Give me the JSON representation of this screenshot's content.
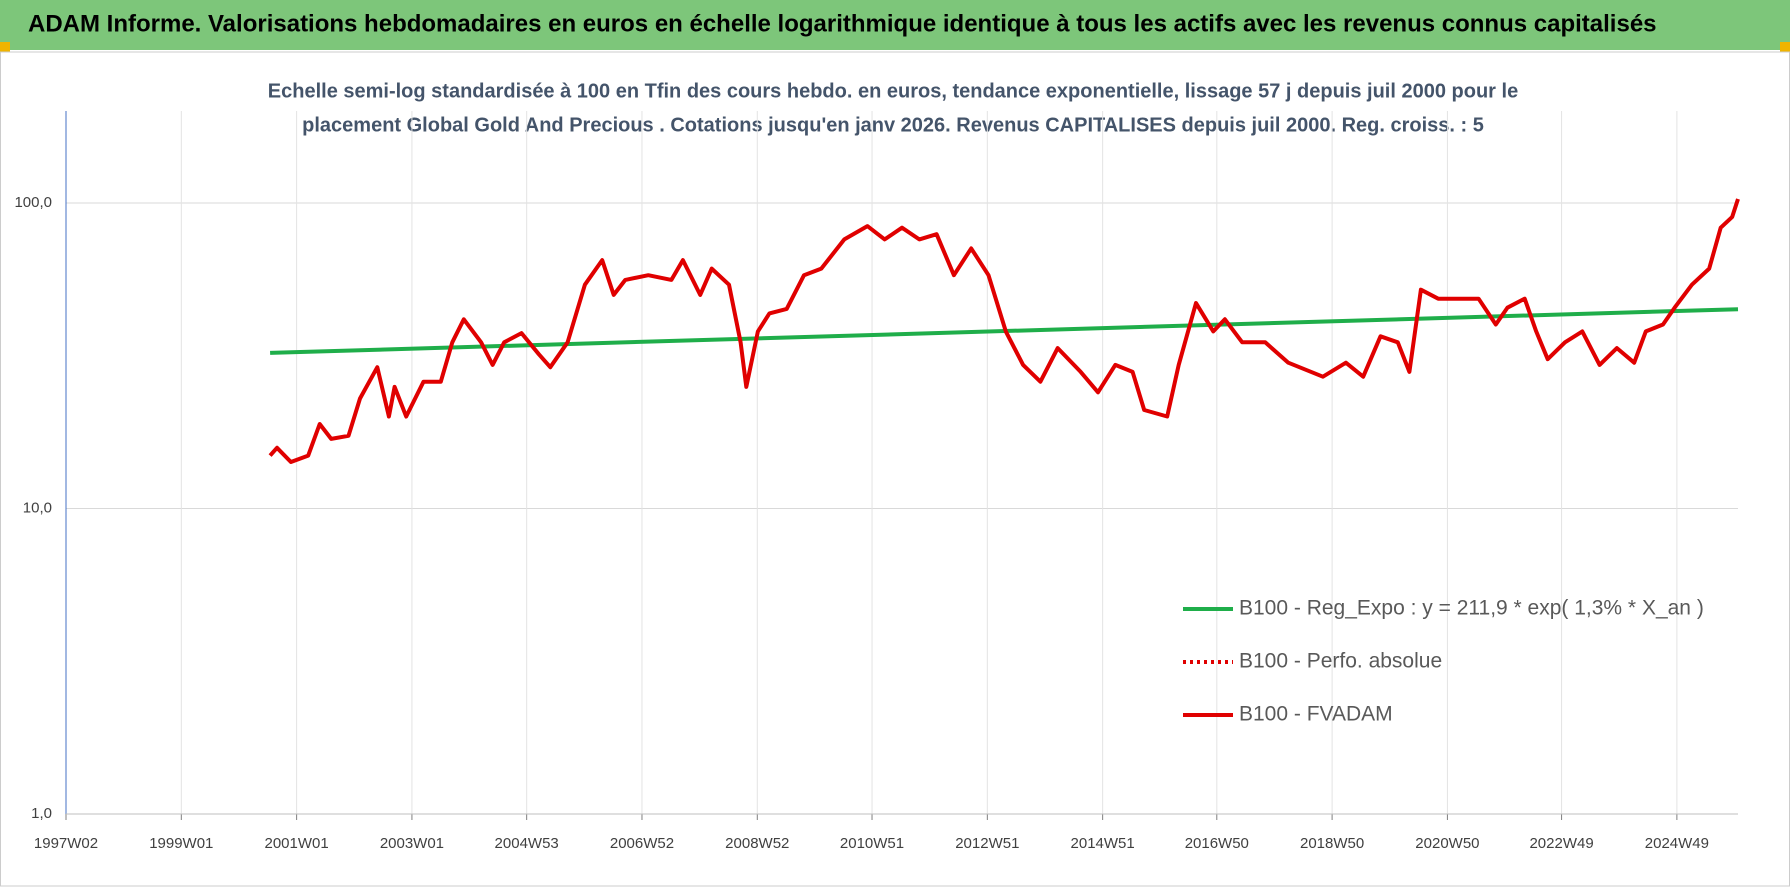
{
  "chart_data": {
    "type": "line",
    "banner": "ADAM Informe. Valorisations hebdomadaires en euros en échelle logarithmique identique à tous les actifs avec les revenus connus capitalisés",
    "title": [
      "Echelle semi-log standardisée à 100 en Tfin des cours hebdo. en euros, tendance exponentielle, lissage 57 j depuis juil 2000 pour le",
      "placement Global Gold And Precious . Cotations jusqu'en janv 2026. Revenus CAPITALISES depuis juil 2000. Reg. croiss. : 5"
    ],
    "log_y": true,
    "grid": true,
    "legend": "lower right",
    "xlim": [
      1997,
      2026
    ],
    "xticks": [
      {
        "value": 1997.0,
        "label": "1997W02"
      },
      {
        "value": 1999.0,
        "label": "1999W01"
      },
      {
        "value": 2001.0,
        "label": "2001W01"
      },
      {
        "value": 2003.0,
        "label": "2003W01"
      },
      {
        "value": 2004.99,
        "label": "2004W53"
      },
      {
        "value": 2006.99,
        "label": "2006W52"
      },
      {
        "value": 2008.99,
        "label": "2008W52"
      },
      {
        "value": 2010.98,
        "label": "2010W51"
      },
      {
        "value": 2012.98,
        "label": "2012W51"
      },
      {
        "value": 2014.98,
        "label": "2014W51"
      },
      {
        "value": 2016.96,
        "label": "2016W50"
      },
      {
        "value": 2018.96,
        "label": "2018W50"
      },
      {
        "value": 2020.96,
        "label": "2020W50"
      },
      {
        "value": 2022.94,
        "label": "2022W49"
      },
      {
        "value": 2024.94,
        "label": "2024W49"
      }
    ],
    "ylim": [
      1,
      200
    ],
    "yticks": [
      {
        "value": 1,
        "label": "1,0"
      },
      {
        "value": 10,
        "label": "10,0"
      },
      {
        "value": 100,
        "label": "100,0"
      }
    ],
    "series": [
      {
        "name": "B100 - Reg_Expo : y = 211,9 * exp( 1,3% *  X_an )",
        "color": "#1fae4a",
        "dash": "solid",
        "x": [
          2000.54,
          2026.0
        ],
        "values": [
          32.3,
          44.9
        ]
      },
      {
        "name": "B100 - Perfo. absolue",
        "color": "#e00000",
        "dash": "dotted",
        "x": [],
        "values": []
      },
      {
        "name": "B100 - FVADAM",
        "color": "#e00000",
        "dash": "solid",
        "x": [
          2000.54,
          2000.66,
          2000.9,
          2001.2,
          2001.4,
          2001.6,
          2001.9,
          2002.1,
          2002.4,
          2002.6,
          2002.7,
          2002.9,
          2003.2,
          2003.5,
          2003.7,
          2003.9,
          2004.2,
          2004.4,
          2004.6,
          2004.9,
          2005.2,
          2005.4,
          2005.7,
          2006.0,
          2006.3,
          2006.5,
          2006.7,
          2007.1,
          2007.5,
          2007.7,
          2008.0,
          2008.2,
          2008.5,
          2008.7,
          2008.8,
          2009.0,
          2009.2,
          2009.5,
          2009.8,
          2010.1,
          2010.5,
          2010.9,
          2011.2,
          2011.5,
          2011.8,
          2012.1,
          2012.4,
          2012.7,
          2013.0,
          2013.3,
          2013.6,
          2013.9,
          2014.2,
          2014.6,
          2014.9,
          2015.2,
          2015.5,
          2015.7,
          2016.1,
          2016.3,
          2016.6,
          2016.9,
          2017.1,
          2017.4,
          2017.8,
          2018.2,
          2018.8,
          2019.2,
          2019.5,
          2019.8,
          2020.1,
          2020.3,
          2020.5,
          2020.8,
          2021.2,
          2021.5,
          2021.8,
          2022.0,
          2022.3,
          2022.5,
          2022.7,
          2023.0,
          2023.3,
          2023.6,
          2023.9,
          2024.2,
          2024.4,
          2024.7,
          2024.9,
          2025.2,
          2025.5,
          2025.7,
          2025.9,
          2026.0
        ],
        "values": [
          14.9,
          15.8,
          14.2,
          14.9,
          18.9,
          16.9,
          17.3,
          22.9,
          29,
          20,
          25,
          20,
          26,
          26,
          35,
          41.6,
          35,
          29.5,
          35,
          37.5,
          32,
          29,
          35,
          54,
          65,
          50,
          56,
          58,
          56,
          65,
          50,
          61,
          54,
          35,
          25,
          38,
          43.5,
          45,
          58,
          61,
          76,
          84,
          76,
          83,
          76,
          79,
          58,
          71,
          58,
          38,
          29.5,
          26,
          33.5,
          28,
          24,
          29.5,
          28,
          21,
          20,
          29.5,
          47,
          38,
          41.6,
          35,
          35,
          30,
          27,
          30,
          27,
          36.6,
          35,
          28,
          52,
          48.6,
          48.6,
          48.6,
          40,
          45.4,
          48.6,
          38,
          30.8,
          35,
          38,
          29.5,
          33.5,
          30,
          38,
          40,
          45.4,
          54,
          61,
          83,
          90,
          103
        ]
      }
    ]
  }
}
